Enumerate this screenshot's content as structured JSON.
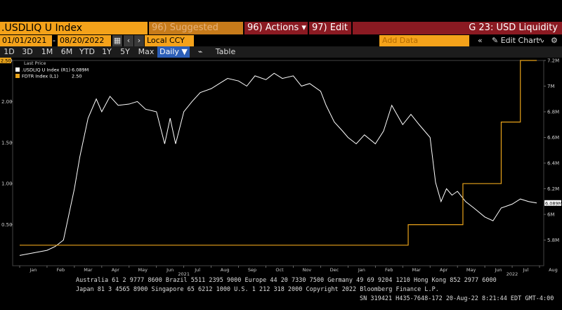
{
  "toolbar": {
    "ticker": ".USDLIQ U Index",
    "suggested": "96) Suggested Charts",
    "actions": "96) Actions ▾",
    "edit": "97) Edit ▾",
    "screen_title": "G 23: USD Liquidity"
  },
  "controls": {
    "start_date": "01/01/2021",
    "end_date": "08/20/2022",
    "currency": "Local CCY",
    "add_data_placeholder": "Add Data",
    "edit_chart": "Edit Chart",
    "periods": [
      "1D",
      "3D",
      "1M",
      "6M",
      "YTD",
      "1Y",
      "5Y",
      "Max"
    ],
    "frequency": "Daily ▼",
    "table": "Table"
  },
  "legend": {
    "header": "Last Price",
    "items": [
      {
        "label": ".USDLIQ U Index (R1)",
        "value": "6.089M"
      },
      {
        "label": "FDTR Index (L1)",
        "value": "2.50"
      }
    ]
  },
  "chart_data": {
    "type": "line",
    "title": "",
    "right_axis": {
      "ticks": [
        "5.8M",
        "6M",
        "6.2M",
        "6.4M",
        "6.6M",
        "6.8M",
        "7M",
        "7.2M"
      ],
      "ylim": [
        5.6,
        7.2
      ]
    },
    "left_axis": {
      "ticks": [
        "0.50",
        "1.00",
        "1.50",
        "2.00",
        "2.50"
      ],
      "ylim": [
        0,
        2.5
      ]
    },
    "x_ticks": [
      "Jan",
      "Feb",
      "Mar",
      "Apr",
      "May",
      "Jun",
      "Jul",
      "Aug",
      "Sep",
      "Oct",
      "Nov",
      "Dec",
      "Jan",
      "Feb",
      "Mar",
      "Apr",
      "May",
      "Jun",
      "Jul",
      "Aug"
    ],
    "year_labels": [
      "2021",
      "2022"
    ],
    "series": [
      {
        "name": ".USDLIQ U Index (R1)",
        "axis": "right",
        "color": "#ffffff",
        "last_value_label": "6.089M",
        "x": [
          0,
          0.5,
          1,
          1.3,
          1.6,
          1.8,
          2,
          2.2,
          2.5,
          2.8,
          3,
          3.3,
          3.6,
          4,
          4.3,
          4.6,
          5,
          5.3,
          5.5,
          5.7,
          6,
          6.3,
          6.6,
          7,
          7.3,
          7.6,
          8,
          8.3,
          8.6,
          9,
          9.3,
          9.6,
          10,
          10.3,
          10.6,
          11,
          11.2,
          11.5,
          11.8,
          12,
          12.3,
          12.6,
          13,
          13.3,
          13.6,
          14,
          14.3,
          14.6,
          15,
          15.2,
          15.4,
          15.6,
          15.8,
          16,
          16.3,
          16.6,
          17,
          17.3,
          17.6,
          18,
          18.3,
          18.6,
          18.9
        ],
        "y": [
          5.68,
          5.7,
          5.72,
          5.75,
          5.8,
          6.0,
          6.2,
          6.45,
          6.75,
          6.9,
          6.8,
          6.92,
          6.85,
          6.86,
          6.88,
          6.82,
          6.8,
          6.55,
          6.75,
          6.55,
          6.8,
          6.88,
          6.95,
          6.98,
          7.02,
          7.06,
          7.04,
          7.0,
          7.08,
          7.05,
          7.1,
          7.06,
          7.08,
          7.0,
          7.02,
          6.96,
          6.85,
          6.72,
          6.65,
          6.6,
          6.55,
          6.62,
          6.55,
          6.65,
          6.85,
          6.7,
          6.78,
          6.7,
          6.6,
          6.25,
          6.1,
          6.2,
          6.15,
          6.18,
          6.1,
          6.05,
          5.98,
          5.95,
          6.05,
          6.08,
          6.12,
          6.1,
          6.089
        ]
      },
      {
        "name": "FDTR Index (L1)",
        "axis": "left",
        "color": "#e8a21a",
        "last_value_label": "2.50",
        "x": [
          0,
          14.2,
          14.2,
          16.2,
          16.2,
          17.6,
          17.6,
          18.3,
          18.3,
          18.9
        ],
        "y": [
          0.25,
          0.25,
          0.5,
          0.5,
          1.0,
          1.0,
          1.75,
          1.75,
          2.5,
          2.5
        ]
      }
    ]
  },
  "footer": {
    "line1": "Australia 61 2 9777 8600 Brazil 5511 2395 9000 Europe 44 20 7330 7500 Germany 49 69 9204 1210 Hong Kong 852 2977 6000",
    "line2": "Japan 81 3 4565 8900       Singapore 65 6212 1000       U.S. 1 212 318 2000        Copyright 2022 Bloomberg Finance L.P.",
    "line3": "SN 319421 H435-7648-172 20-Aug-22  8:21:44 EDT  GMT-4:00"
  }
}
